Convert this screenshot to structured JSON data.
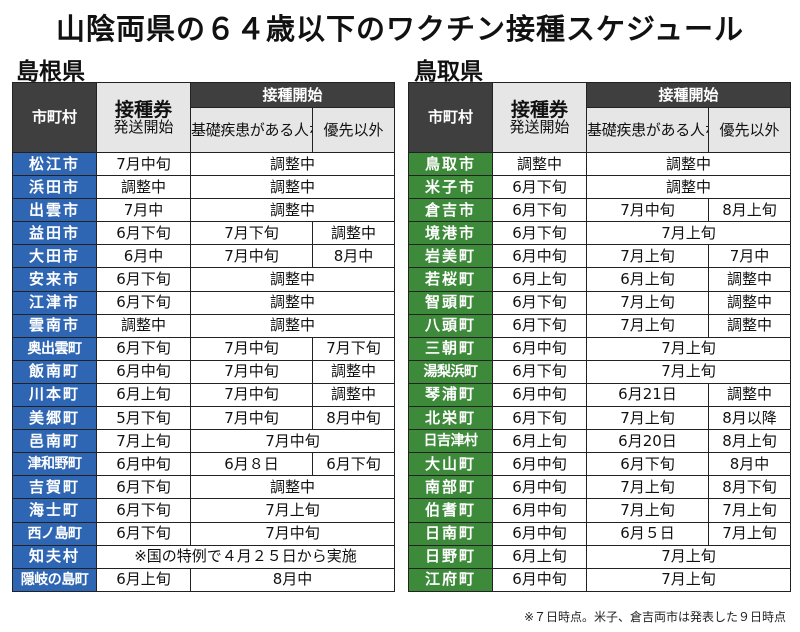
{
  "title": "山陰両県の６４歳以下のワクチン接種スケジュール",
  "shimane": {
    "label": "島根県",
    "headers": {
      "city": "市町村",
      "ticket_top": "接種券",
      "ticket_bottom": "発送開始",
      "start": "接種開始",
      "priority": "基礎疾患がある人など優先対象者",
      "other": "優先以外"
    },
    "rows": [
      {
        "city": "松江市",
        "ticket": "7月中旬",
        "span": "調整中"
      },
      {
        "city": "浜田市",
        "ticket": "調整中",
        "span": "調整中"
      },
      {
        "city": "出雲市",
        "ticket": "7月中",
        "span": "調整中"
      },
      {
        "city": "益田市",
        "ticket": "6月下旬",
        "priority": "7月下旬",
        "other": "調整中"
      },
      {
        "city": "大田市",
        "ticket": "6月中",
        "priority": "7月中旬",
        "other": "8月中"
      },
      {
        "city": "安来市",
        "ticket": "6月下旬",
        "span": "調整中"
      },
      {
        "city": "江津市",
        "ticket": "6月下旬",
        "span": "調整中"
      },
      {
        "city": "雲南市",
        "ticket": "調整中",
        "span": "調整中"
      },
      {
        "city": "奥出雲町",
        "ticket": "6月下旬",
        "priority": "7月中旬",
        "other": "7月下旬"
      },
      {
        "city": "飯南町",
        "ticket": "6月中旬",
        "priority": "7月中旬",
        "other": "調整中"
      },
      {
        "city": "川本町",
        "ticket": "6月上旬",
        "priority": "7月中旬",
        "other": "調整中"
      },
      {
        "city": "美郷町",
        "ticket": "5月下旬",
        "priority": "7月中旬",
        "other": "8月中旬"
      },
      {
        "city": "邑南町",
        "ticket": "7月上旬",
        "span": "7月中旬"
      },
      {
        "city": "津和野町",
        "ticket": "6月中旬",
        "priority": "6月８日",
        "other": "6月下旬"
      },
      {
        "city": "吉賀町",
        "ticket": "6月下旬",
        "span": "調整中"
      },
      {
        "city": "海士町",
        "ticket": "6月下旬",
        "span": "7月上旬"
      },
      {
        "city": "西ノ島町",
        "ticket": "6月下旬",
        "span": "7月中旬"
      },
      {
        "city": "知夫村",
        "note": "※国の特例で４月２５日から実施"
      },
      {
        "city": "隠岐の島町",
        "ticket": "6月上旬",
        "span": "8月中"
      }
    ]
  },
  "tottori": {
    "label": "鳥取県",
    "headers": {
      "city": "市町村",
      "ticket_top": "接種券",
      "ticket_bottom": "発送開始",
      "start": "接種開始",
      "priority": "基礎疾患がある人など優先対象者",
      "other": "優先以外"
    },
    "rows": [
      {
        "city": "鳥取市",
        "ticket": "調整中",
        "span": "調整中"
      },
      {
        "city": "米子市",
        "ticket": "6月下旬",
        "span": "調整中"
      },
      {
        "city": "倉吉市",
        "ticket": "6月下旬",
        "priority": "7月中旬",
        "other": "8月上旬"
      },
      {
        "city": "境港市",
        "ticket": "6月下旬",
        "span": "7月上旬"
      },
      {
        "city": "岩美町",
        "ticket": "6月中旬",
        "priority": "7月上旬",
        "other": "7月中"
      },
      {
        "city": "若桜町",
        "ticket": "6月上旬",
        "priority": "6月上旬",
        "other": "調整中"
      },
      {
        "city": "智頭町",
        "ticket": "6月下旬",
        "priority": "7月上旬",
        "other": "調整中"
      },
      {
        "city": "八頭町",
        "ticket": "6月下旬",
        "priority": "7月上旬",
        "other": "調整中"
      },
      {
        "city": "三朝町",
        "ticket": "6月中旬",
        "span": "7月上旬"
      },
      {
        "city": "湯梨浜町",
        "ticket": "6月下旬",
        "span": "7月上旬"
      },
      {
        "city": "琴浦町",
        "ticket": "6月中旬",
        "priority": "6月21日",
        "other": "調整中"
      },
      {
        "city": "北栄町",
        "ticket": "6月下旬",
        "priority": "7月上旬",
        "other": "8月以降"
      },
      {
        "city": "日吉津村",
        "ticket": "6月上旬",
        "priority": "6月20日",
        "other": "8月上旬"
      },
      {
        "city": "大山町",
        "ticket": "6月中旬",
        "priority": "6月下旬",
        "other": "8月中"
      },
      {
        "city": "南部町",
        "ticket": "6月中旬",
        "priority": "7月上旬",
        "other": "8月下旬"
      },
      {
        "city": "伯耆町",
        "ticket": "6月中旬",
        "priority": "7月上旬",
        "other": "7月上旬"
      },
      {
        "city": "日南町",
        "ticket": "6月中旬",
        "priority": "6月５日",
        "other": "7月上旬"
      },
      {
        "city": "日野町",
        "ticket": "6月上旬",
        "span": "7月上旬"
      },
      {
        "city": "江府町",
        "ticket": "6月中旬",
        "span": "7月上旬"
      }
    ]
  },
  "footnote": "※７日時点。米子、倉吉両市は発表した９日時点"
}
